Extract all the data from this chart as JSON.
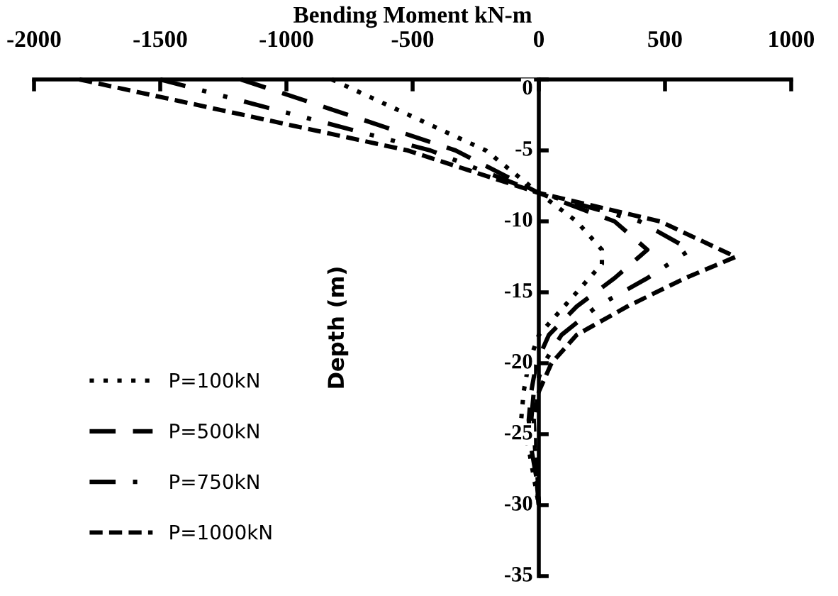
{
  "chart_data": {
    "type": "line",
    "xlabel": "Bending Moment kN-m",
    "ylabel": "Depth (m)",
    "xlim": [
      -2000,
      1000
    ],
    "xticks": [
      -2000,
      -1500,
      -1000,
      -500,
      0,
      500,
      1000
    ],
    "ylim": [
      -35,
      0
    ],
    "yticks": [
      -35,
      -30,
      -25,
      -20,
      -15,
      -10,
      -5,
      0
    ],
    "grid": false,
    "legend": "bottom left",
    "marker": "none",
    "series": [
      {
        "name": "P=100kN",
        "color": "#000000",
        "line_style": "dotted",
        "x": [
          -820,
          -210,
          0,
          150,
          250,
          250,
          150,
          0,
          -40,
          -60,
          -70,
          -40,
          -20,
          0
        ],
        "values": [
          0,
          -5,
          -8,
          -10,
          -12,
          -13,
          -15,
          -18,
          -20,
          -22,
          -24,
          -26,
          -28,
          -30
        ]
      },
      {
        "name": "P=500kN",
        "color": "#000000",
        "line_style": "long dashed",
        "x": [
          -1180,
          -330,
          0,
          300,
          430,
          300,
          150,
          40,
          -10,
          -30,
          -40,
          -30,
          -10,
          0
        ],
        "values": [
          0,
          -5,
          -8,
          -10,
          -12,
          -14,
          -16,
          -18,
          -20,
          -22,
          -24,
          -26,
          -28,
          -30
        ]
      },
      {
        "name": "P=750kN",
        "color": "#000000",
        "line_style": "dash dot",
        "x": [
          -1500,
          -430,
          0,
          400,
          600,
          430,
          230,
          90,
          20,
          -20,
          -30,
          -20,
          -10,
          0
        ],
        "values": [
          0,
          -5,
          -8,
          -10,
          -12,
          -14,
          -16,
          -18,
          -20,
          -22,
          -24,
          -26,
          -28,
          -30
        ]
      },
      {
        "name": "P=1000kN",
        "color": "#000000",
        "line_style": "dashed",
        "x": [
          -1820,
          -520,
          0,
          480,
          780,
          580,
          350,
          150,
          50,
          0,
          -20,
          -15,
          -5,
          0
        ],
        "values": [
          0,
          -5,
          -8,
          -10,
          -12.5,
          -14,
          -16,
          -18,
          -20,
          -22,
          -24,
          -26,
          -28,
          -30
        ]
      }
    ]
  }
}
